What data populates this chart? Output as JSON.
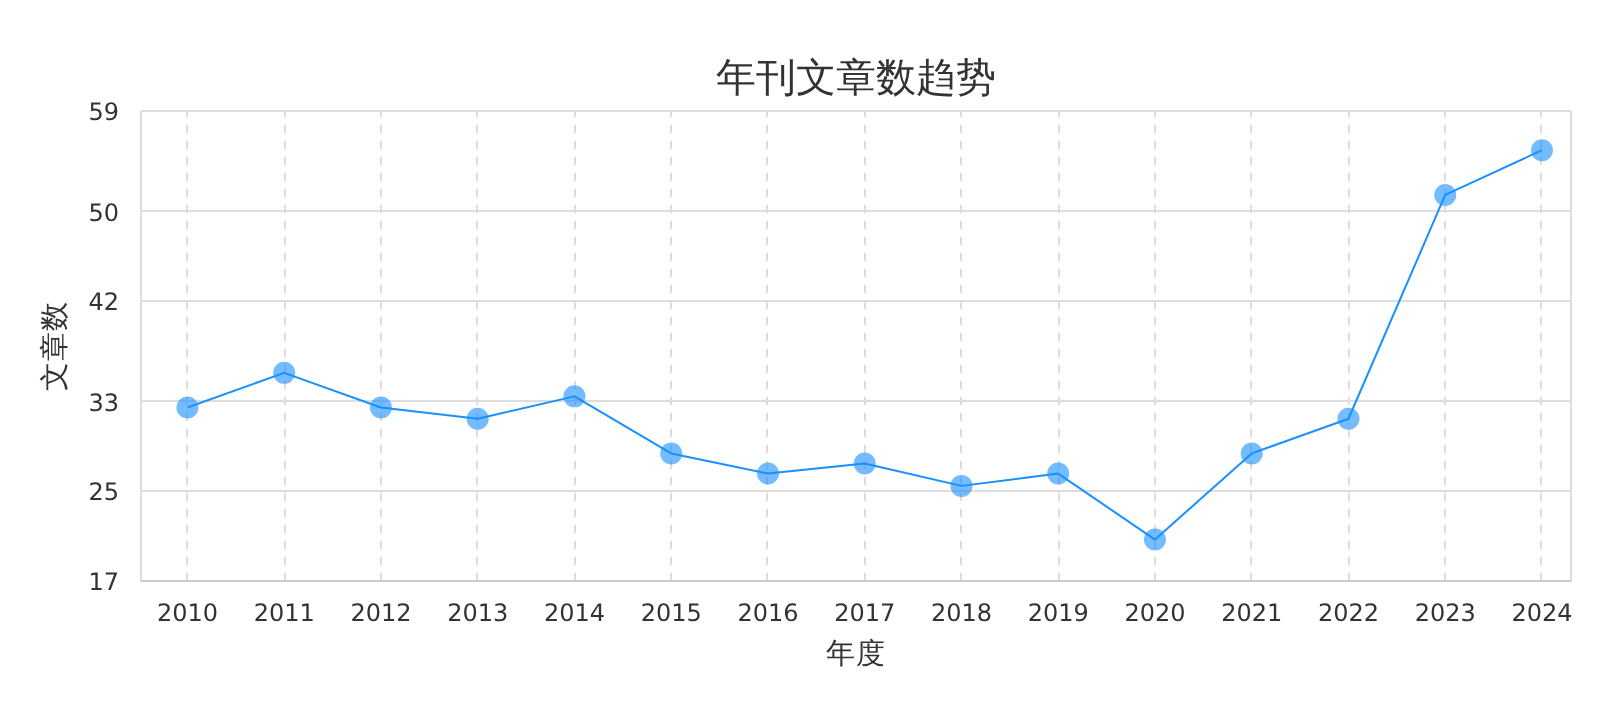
{
  "chart_data": {
    "type": "line",
    "title": "年刊文章数趋势",
    "xlabel": "年度",
    "ylabel": "文章数",
    "categories": [
      "2010",
      "2011",
      "2012",
      "2013",
      "2014",
      "2015",
      "2016",
      "2017",
      "2018",
      "2019",
      "2020",
      "2021",
      "2022",
      "2023",
      "2024"
    ],
    "series": [
      {
        "color": "#1890ff",
        "values": [
          32.5,
          35.6,
          32.5,
          31.5,
          33.5,
          28.4,
          26.6,
          27.5,
          25.5,
          26.6,
          20.7,
          28.4,
          31.5,
          51.5,
          55.5
        ]
      }
    ],
    "ylim": [
      17,
      59
    ],
    "yticks": [
      17,
      25,
      33,
      42,
      50,
      59
    ],
    "grid": true,
    "marker": "circle",
    "line_style": "solid"
  }
}
